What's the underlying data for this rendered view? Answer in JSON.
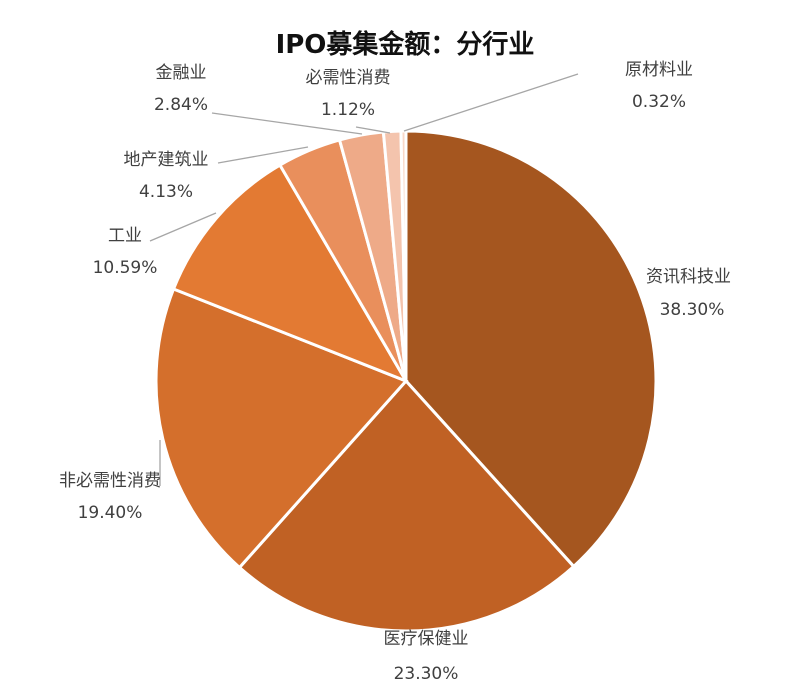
{
  "chart_data": {
    "type": "pie",
    "title": "IPO募集金额：分行业",
    "slices": [
      {
        "label": "资讯科技业",
        "value": 38.3,
        "display": "38.30%",
        "color": "#A5561F"
      },
      {
        "label": "医疗保健业",
        "value": 23.3,
        "display": "23.30%",
        "color": "#C06124"
      },
      {
        "label": "非必需性消费",
        "value": 19.4,
        "display": "19.40%",
        "color": "#D46F2C"
      },
      {
        "label": "工业",
        "value": 10.59,
        "display": "10.59%",
        "color": "#E37A33"
      },
      {
        "label": "地产建筑业",
        "value": 4.13,
        "display": "4.13%",
        "color": "#E98F5C"
      },
      {
        "label": "金融业",
        "value": 2.84,
        "display": "2.84%",
        "color": "#EEAA88"
      },
      {
        "label": "必需性消费",
        "value": 1.12,
        "display": "1.12%",
        "color": "#F4C4AD"
      },
      {
        "label": "原材料业",
        "value": 0.32,
        "display": "0.32%",
        "color": "#F8D8C8"
      }
    ],
    "legend": "none",
    "data_labels": "outside, category name and percentage"
  }
}
